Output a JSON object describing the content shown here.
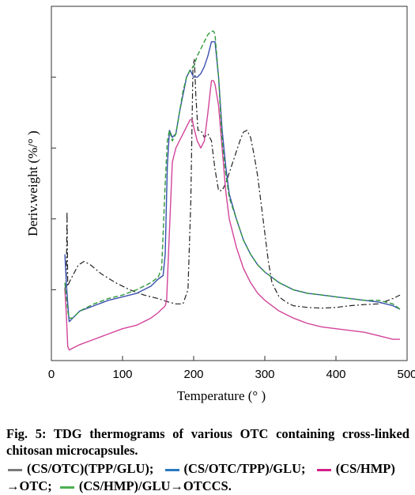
{
  "colors": {
    "cs_otc_tpp_glu": "#222222",
    "cs_otc_tpp_then_glu": "#3a4fae",
    "cs_hmp_otc": "#d2449a",
    "cs_hmp_glu_otccs": "#2e9a3a"
  },
  "caption": {
    "fig_label": "Fig. 5:",
    "fig_text": "TDG thermograms of various OTC containing cross-linked chitosan microcapsules."
  },
  "legend_swatch_colors": [
    "#7a7a7a",
    "#2a78c2",
    "#d2208a",
    "#4caf50"
  ],
  "chart_data": {
    "type": "line",
    "xlabel": "Temperature (° )",
    "ylabel": "Deriv.weight (%/° )",
    "xlim": [
      0,
      500
    ],
    "xticks": [
      0,
      100,
      200,
      300,
      400,
      500
    ],
    "ylim": [
      0,
      1
    ],
    "y_tick_labels_shown": false,
    "grid": false,
    "series": [
      {
        "name": "(CS/OTC)(TPP/GLU)",
        "style": "dash-dot",
        "x": [
          19,
          21,
          22,
          23,
          25,
          30,
          38,
          46,
          55,
          70,
          90,
          110,
          130,
          150,
          165,
          175,
          185,
          192,
          196,
          199,
          201,
          203,
          206,
          210,
          215,
          220,
          225,
          230,
          235,
          240,
          245,
          250,
          255,
          260,
          265,
          270,
          275,
          280,
          285,
          290,
          295,
          300,
          305,
          310,
          320,
          330,
          340,
          360,
          380,
          400,
          420,
          440,
          460,
          480,
          490
        ],
        "y": [
          0.2,
          0.23,
          0.42,
          0.21,
          0.22,
          0.24,
          0.27,
          0.28,
          0.27,
          0.245,
          0.22,
          0.2,
          0.185,
          0.175,
          0.165,
          0.16,
          0.16,
          0.2,
          0.45,
          0.83,
          0.85,
          0.75,
          0.65,
          0.65,
          0.63,
          0.64,
          0.62,
          0.54,
          0.48,
          0.48,
          0.5,
          0.53,
          0.56,
          0.59,
          0.62,
          0.645,
          0.65,
          0.63,
          0.58,
          0.52,
          0.44,
          0.36,
          0.28,
          0.22,
          0.18,
          0.165,
          0.155,
          0.15,
          0.148,
          0.15,
          0.155,
          0.158,
          0.16,
          0.175,
          0.185
        ]
      },
      {
        "name": "(CS/OTC/TPP)/GLU",
        "style": "solid",
        "x": [
          19,
          21,
          23,
          25,
          30,
          40,
          60,
          80,
          100,
          120,
          140,
          150,
          157,
          160,
          163,
          166,
          170,
          175,
          180,
          185,
          190,
          195,
          200,
          205,
          210,
          215,
          220,
          225,
          230,
          235,
          240,
          245,
          250,
          260,
          270,
          280,
          290,
          300,
          320,
          340,
          360,
          380,
          400,
          420,
          440,
          460,
          480,
          490
        ],
        "y": [
          0.3,
          0.22,
          0.16,
          0.11,
          0.12,
          0.14,
          0.155,
          0.17,
          0.18,
          0.19,
          0.21,
          0.23,
          0.24,
          0.3,
          0.55,
          0.65,
          0.63,
          0.64,
          0.7,
          0.75,
          0.8,
          0.82,
          0.8,
          0.8,
          0.81,
          0.83,
          0.86,
          0.9,
          0.9,
          0.8,
          0.65,
          0.55,
          0.47,
          0.4,
          0.34,
          0.3,
          0.27,
          0.25,
          0.22,
          0.2,
          0.19,
          0.185,
          0.18,
          0.175,
          0.17,
          0.165,
          0.155,
          0.145
        ]
      },
      {
        "name": "(CS/HMP)→OTC",
        "style": "solid",
        "x": [
          19,
          21,
          23,
          25,
          30,
          40,
          60,
          80,
          100,
          120,
          140,
          150,
          155,
          158,
          160,
          162,
          165,
          170,
          175,
          180,
          185,
          190,
          195,
          198,
          200,
          205,
          210,
          215,
          220,
          225,
          228,
          230,
          235,
          240,
          245,
          250,
          260,
          270,
          280,
          290,
          300,
          320,
          340,
          360,
          380,
          400,
          420,
          440,
          460,
          480,
          490
        ],
        "y": [
          0.2,
          0.13,
          0.04,
          0.03,
          0.035,
          0.045,
          0.06,
          0.075,
          0.09,
          0.1,
          0.12,
          0.135,
          0.145,
          0.15,
          0.155,
          0.17,
          0.32,
          0.56,
          0.6,
          0.62,
          0.64,
          0.66,
          0.68,
          0.68,
          0.66,
          0.62,
          0.6,
          0.62,
          0.7,
          0.79,
          0.79,
          0.78,
          0.72,
          0.6,
          0.48,
          0.4,
          0.32,
          0.26,
          0.22,
          0.19,
          0.17,
          0.14,
          0.12,
          0.105,
          0.095,
          0.09,
          0.085,
          0.08,
          0.07,
          0.06,
          0.06
        ]
      },
      {
        "name": "(CS/HMP)/GLU→OTCCS",
        "style": "dashed",
        "x": [
          19,
          21,
          23,
          25,
          30,
          40,
          60,
          80,
          100,
          120,
          140,
          150,
          155,
          160,
          163,
          166,
          170,
          175,
          180,
          185,
          190,
          195,
          200,
          205,
          210,
          215,
          220,
          225,
          228,
          230,
          235,
          240,
          245,
          250,
          260,
          270,
          280,
          290,
          300,
          320,
          340,
          360,
          380,
          400,
          420,
          440,
          460,
          480,
          490
        ],
        "y": [
          0.22,
          0.18,
          0.14,
          0.12,
          0.12,
          0.14,
          0.16,
          0.175,
          0.185,
          0.2,
          0.22,
          0.235,
          0.26,
          0.5,
          0.62,
          0.65,
          0.62,
          0.64,
          0.7,
          0.76,
          0.8,
          0.82,
          0.83,
          0.86,
          0.88,
          0.9,
          0.92,
          0.93,
          0.93,
          0.92,
          0.8,
          0.62,
          0.53,
          0.46,
          0.4,
          0.34,
          0.3,
          0.27,
          0.25,
          0.22,
          0.2,
          0.19,
          0.185,
          0.18,
          0.175,
          0.17,
          0.17,
          0.16,
          0.145
        ]
      }
    ],
    "legend_entries": [
      "(CS/OTC)(TPP/GLU);",
      "(CS/OTC/TPP)/GLU;",
      "(CS/HMP)",
      "→OTC;",
      "(CS/HMP)/GLU→OTCCS."
    ]
  }
}
